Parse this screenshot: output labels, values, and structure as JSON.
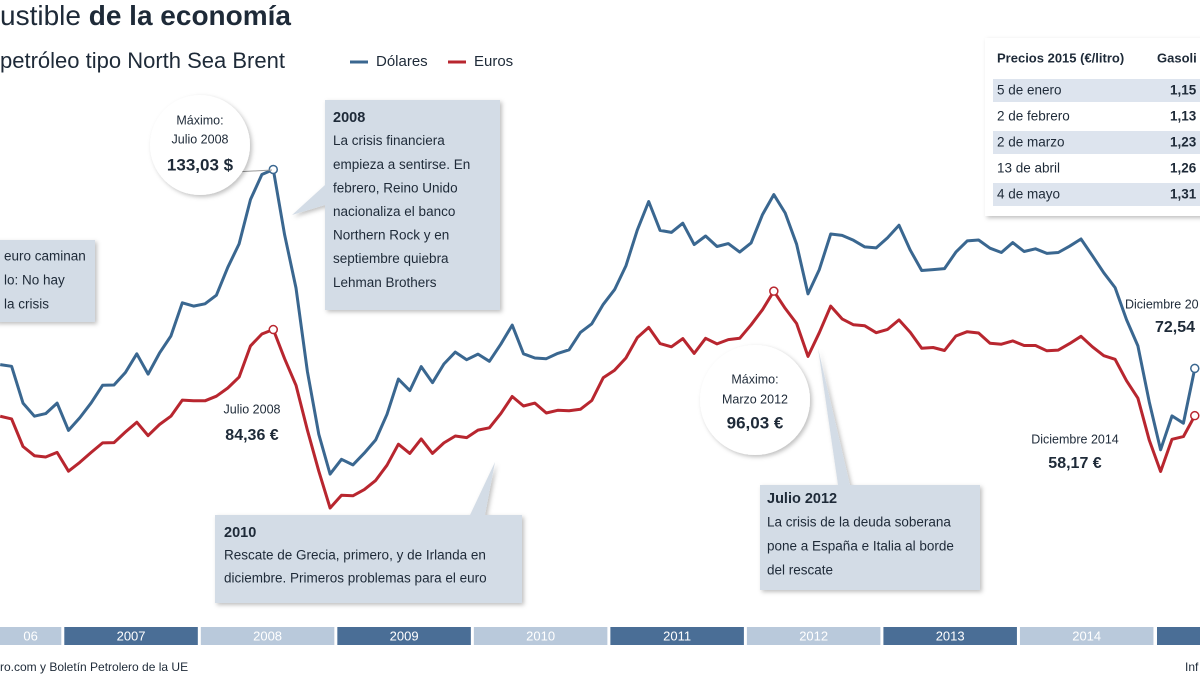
{
  "chart_data": {
    "type": "line",
    "title": {
      "light": "ustible",
      "bold": "de la economía"
    },
    "subtitle": "petróleo tipo North Sea Brent",
    "x": [
      2006.5417,
      2006.625,
      2006.7083,
      2006.7917,
      2006.875,
      2006.9583,
      2007.0417,
      2007.125,
      2007.2083,
      2007.2917,
      2007.375,
      2007.4583,
      2007.5417,
      2007.625,
      2007.7083,
      2007.7917,
      2007.875,
      2007.9583,
      2008.0417,
      2008.125,
      2008.2083,
      2008.2917,
      2008.375,
      2008.4583,
      2008.5417,
      2008.625,
      2008.7083,
      2008.7917,
      2008.875,
      2008.9583,
      2009.0417,
      2009.125,
      2009.2083,
      2009.2917,
      2009.375,
      2009.4583,
      2009.5417,
      2009.625,
      2009.7083,
      2009.7917,
      2009.875,
      2009.9583,
      2010.0417,
      2010.125,
      2010.2083,
      2010.2917,
      2010.375,
      2010.4583,
      2010.5417,
      2010.625,
      2010.7083,
      2010.7917,
      2010.875,
      2010.9583,
      2011.0417,
      2011.125,
      2011.2083,
      2011.2917,
      2011.375,
      2011.4583,
      2011.5417,
      2011.625,
      2011.7083,
      2011.7917,
      2011.875,
      2011.9583,
      2012.0417,
      2012.125,
      2012.2083,
      2012.2917,
      2012.375,
      2012.4583,
      2012.5417,
      2012.625,
      2012.7083,
      2012.7917,
      2012.875,
      2012.9583,
      2013.0417,
      2013.125,
      2013.2083,
      2013.2917,
      2013.375,
      2013.4583,
      2013.5417,
      2013.625,
      2013.7083,
      2013.7917,
      2013.875,
      2013.9583,
      2014.0417,
      2014.125,
      2014.2083,
      2014.2917,
      2014.375,
      2014.4583,
      2014.5417,
      2014.625,
      2014.7083,
      2014.7917,
      2014.875,
      2014.9583,
      2015.0417,
      2015.125,
      2015.2083,
      2015.2917
    ],
    "series": [
      {
        "name": "Dólares",
        "color": "#3a6790",
        "values": [
          73.7,
          73.2,
          62.0,
          58.0,
          58.8,
          62.0,
          53.7,
          57.6,
          62.1,
          67.4,
          67.5,
          71.3,
          77.0,
          70.8,
          77.2,
          82.4,
          92.5,
          91.5,
          92.2,
          94.8,
          103.3,
          110.4,
          123.9,
          131.5,
          133.03,
          113.2,
          97.0,
          71.6,
          52.5,
          40.4,
          44.9,
          43.2,
          46.8,
          50.8,
          58.6,
          69.3,
          65.8,
          73.1,
          68.2,
          73.9,
          77.5,
          75.2,
          76.9,
          74.7,
          79.9,
          85.7,
          77.0,
          75.7,
          75.5,
          77.1,
          78.2,
          83.5,
          86.1,
          92.0,
          96.5,
          103.7,
          114.6,
          123.3,
          114.5,
          113.9,
          116.7,
          110.2,
          112.8,
          109.6,
          110.5,
          107.9,
          110.7,
          119.3,
          125.4,
          119.8,
          110.3,
          95.2,
          102.6,
          113.4,
          113.0,
          111.5,
          109.5,
          109.2,
          112.3,
          116.1,
          108.5,
          102.3,
          102.6,
          102.9,
          107.9,
          111.3,
          111.6,
          109.1,
          107.8,
          110.8,
          108.1,
          108.9,
          107.5,
          107.8,
          109.7,
          111.9,
          106.8,
          101.6,
          97.1,
          87.4,
          79.4,
          62.3,
          47.8,
          58.1,
          55.9,
          72.54
        ]
      },
      {
        "name": "Euros",
        "color": "#b8262f",
        "values": [
          58.0,
          57.2,
          48.8,
          46.0,
          45.6,
          47.0,
          41.3,
          44.0,
          47.0,
          49.9,
          50.0,
          53.2,
          56.2,
          52.1,
          55.5,
          58.0,
          62.9,
          62.7,
          62.7,
          64.1,
          66.6,
          69.9,
          79.4,
          83.0,
          84.36,
          75.5,
          67.4,
          53.8,
          41.3,
          30.1,
          34.0,
          33.8,
          35.7,
          38.5,
          43.1,
          49.5,
          46.7,
          51.1,
          46.7,
          49.9,
          52.0,
          51.5,
          53.8,
          54.5,
          58.8,
          64.0,
          61.1,
          62.0,
          59.0,
          59.8,
          59.7,
          60.1,
          62.8,
          69.7,
          72.0,
          75.7,
          81.9,
          85.0,
          80.1,
          79.1,
          81.6,
          77.1,
          81.7,
          80.0,
          81.3,
          81.7,
          85.8,
          90.4,
          96.03,
          90.8,
          86.2,
          76.2,
          83.4,
          91.5,
          87.6,
          85.8,
          85.5,
          83.4,
          84.4,
          87.3,
          83.5,
          78.7,
          78.9,
          78.0,
          82.4,
          83.7,
          83.3,
          80.2,
          79.9,
          80.9,
          79.5,
          79.5,
          77.9,
          78.1,
          80.1,
          82.3,
          79.1,
          76.4,
          75.3,
          68.8,
          63.5,
          50.7,
          41.2,
          51.0,
          51.8,
          58.17
        ]
      }
    ],
    "xlim": [
      2006.54,
      2015.33
    ],
    "xticks": [
      {
        "value": 2006,
        "label": "06"
      },
      2007,
      2008,
      2009,
      2010,
      2011,
      2012,
      2013,
      2014
    ],
    "ylim": [
      0,
      180
    ],
    "annotations": [
      {
        "title": "2008",
        "lines": [
          "La crisis financiera",
          "empieza a sentirse. En",
          "febrero, Reino Unido",
          "nacionaliza el banco",
          "Northern Rock y en",
          "septiembre quiebra",
          "Lehman Brothers"
        ]
      },
      {
        "lines": [
          "euro caminan",
          "lo: No hay",
          "la crisis"
        ]
      },
      {
        "title": "2010",
        "lines": [
          "Rescate de Grecia, primero, y de Irlanda en",
          "diciembre. Primeros problemas para el euro"
        ]
      },
      {
        "title": "Julio 2012",
        "lines": [
          "La crisis de la deuda soberana",
          "pone a España e Italia al borde",
          "del rescate"
        ]
      },
      {
        "lines": [
          "Máximo:",
          "Julio 2008"
        ],
        "emphasis": "133,03 $"
      },
      {
        "lines": [
          "Julio 2008"
        ],
        "emphasis": "84,36 €"
      },
      {
        "lines": [
          "Máximo:",
          "Marzo 2012"
        ],
        "emphasis": "96,03 €"
      },
      {
        "lines": [
          "Diciembre 2014"
        ],
        "emphasis": "58,17 €"
      },
      {
        "lines": [
          "Diciembre 20"
        ],
        "emphasis": "72,54"
      }
    ],
    "table": {
      "title": "Precios 2015 (€/litro)",
      "column": "Gasoli",
      "rows": [
        [
          "5 de enero",
          "1,15"
        ],
        [
          "2 de febrero",
          "1,13"
        ],
        [
          "2 de marzo",
          "1,23"
        ],
        [
          "13 de abril",
          "1,26"
        ],
        [
          "4 de mayo",
          "1,31"
        ]
      ]
    },
    "source": "ro.com y Boletín Petrolero de la UE",
    "credit": "Inf"
  }
}
